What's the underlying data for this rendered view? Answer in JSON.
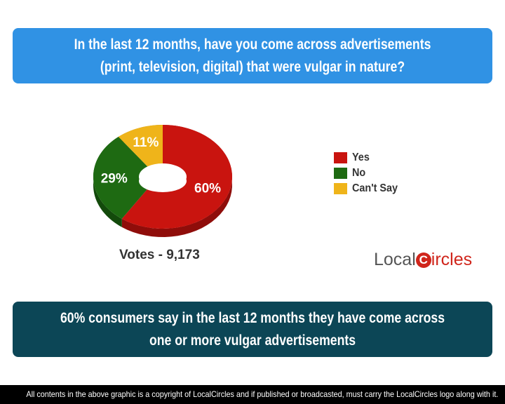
{
  "question": "In the last 12 months, have you come across advertisements (print, television, digital) that were vulgar in nature?",
  "summary": "60% consumers say in the last 12 months they have come across one or more vulgar advertisements",
  "votes": "Votes - 9,173",
  "footer": "All contents in the above graphic is a copyright of LocalCircles and if published or broadcasted, must carry the LocalCircles logo along with it.",
  "logo": {
    "part1": "Local",
    "part2": "C",
    "part3": "ircles"
  },
  "colors": {
    "header": "#3092e4",
    "summary": "#0c4656"
  },
  "chart_data": {
    "type": "pie",
    "style": "3d-donut",
    "legend_position": "right",
    "categories": [
      "Yes",
      "No",
      "Can't Say"
    ],
    "values": [
      60,
      29,
      11
    ],
    "labels": [
      "60%",
      "29%",
      "11%"
    ],
    "colors": [
      "#c9140f",
      "#1e6a12",
      "#efb41a"
    ],
    "dark_colors": [
      "#8f0d0a",
      "#134a0b",
      "#b58410"
    ]
  }
}
